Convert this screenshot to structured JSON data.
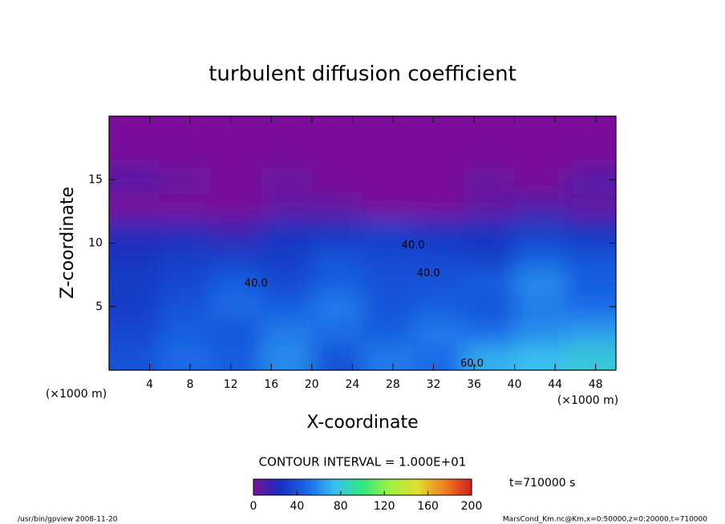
{
  "chart_data": {
    "type": "contour",
    "title": "turbulent diffusion coefficient",
    "x_label": "X-coordinate",
    "y_label": "Z-coordinate",
    "x_unit_label": "(×1000 m)",
    "y_unit_label": "(×1000 m)",
    "xlim": [
      0,
      50
    ],
    "ylim": [
      0,
      20
    ],
    "xticks": [
      4,
      8,
      12,
      16,
      20,
      24,
      28,
      32,
      36,
      40,
      44,
      48
    ],
    "yticks": [
      5,
      10,
      15
    ],
    "grid": false,
    "x": [
      2.5,
      7.5,
      12.5,
      17.5,
      22.5,
      27.5,
      32.5,
      37.5,
      42.5,
      47.5
    ],
    "y": [
      1,
      3,
      5,
      7,
      9,
      11,
      13,
      15,
      17,
      19
    ],
    "z": [
      [
        40,
        50,
        45,
        60,
        40,
        55,
        50,
        70,
        75,
        80
      ],
      [
        35,
        45,
        40,
        55,
        50,
        45,
        55,
        50,
        60,
        65
      ],
      [
        30,
        40,
        50,
        45,
        55,
        40,
        45,
        40,
        55,
        50
      ],
      [
        30,
        35,
        45,
        35,
        45,
        40,
        40,
        45,
        60,
        45
      ],
      [
        25,
        30,
        30,
        30,
        40,
        35,
        35,
        30,
        45,
        40
      ],
      [
        20,
        20,
        15,
        25,
        25,
        30,
        25,
        25,
        30,
        25
      ],
      [
        0,
        0,
        0,
        5,
        5,
        0,
        0,
        5,
        10,
        5
      ],
      [
        10,
        5,
        0,
        5,
        0,
        0,
        0,
        5,
        0,
        10
      ],
      [
        0,
        0,
        0,
        0,
        0,
        0,
        0,
        0,
        0,
        0
      ],
      [
        0,
        0,
        0,
        0,
        0,
        0,
        0,
        0,
        0,
        0
      ]
    ],
    "contour_labels": [
      {
        "value": 40,
        "label": "40.0",
        "x": 30,
        "y": 9.8
      },
      {
        "value": 40,
        "label": "40.0",
        "x": 31.5,
        "y": 7.6
      },
      {
        "value": 40,
        "label": "40.0",
        "x": 14.5,
        "y": 6.8
      },
      {
        "value": 60,
        "label": "60.0",
        "x": 35.8,
        "y": 0.5
      }
    ],
    "contour_interval_label": "CONTOUR INTERVAL = 1.000E+01",
    "time_label": "t=710000 s",
    "colorbar": {
      "range": [
        0,
        200
      ],
      "ticks": [
        0,
        40,
        80,
        120,
        160,
        200
      ],
      "colors": [
        "#7a109a",
        "#1530c0",
        "#1a6ae8",
        "#3ac0f0",
        "#30e880",
        "#a0f040",
        "#e0e030",
        "#f08020",
        "#d02020"
      ]
    },
    "footer_left": "/usr/bin/gpview  2008-11-20",
    "footer_right": "MarsCond_Km.nc@Km,x=0:50000,z=0:20000,t=710000"
  }
}
